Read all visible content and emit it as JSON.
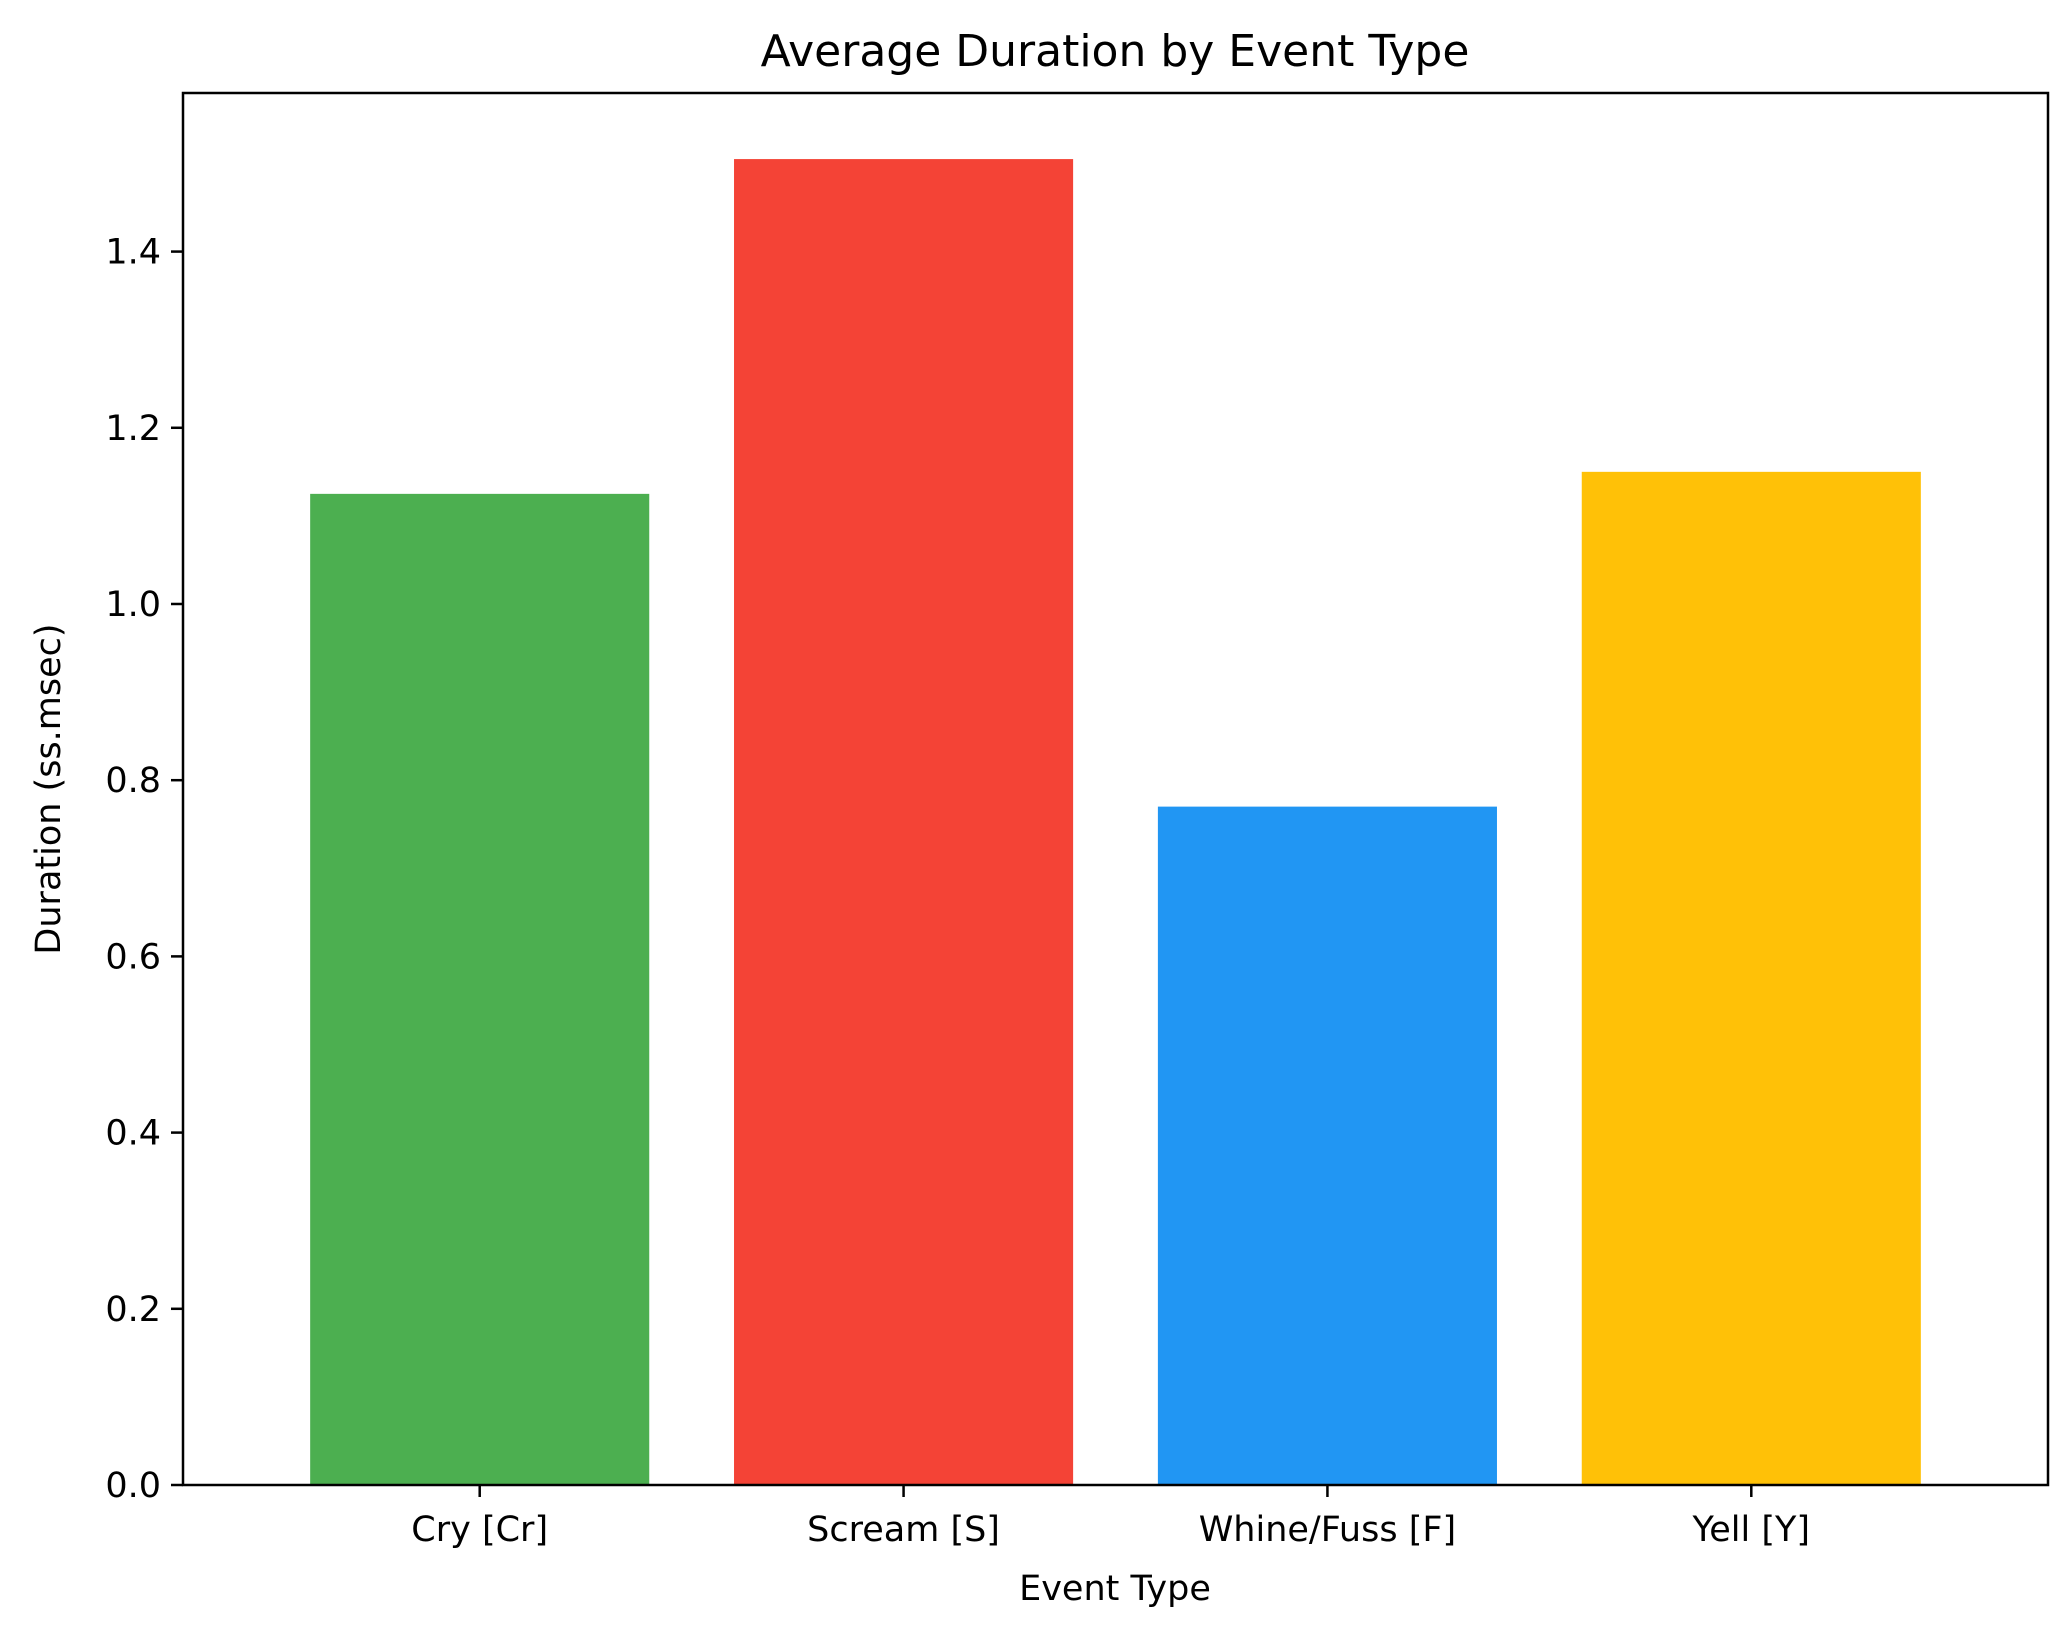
{
  "chart_data": {
    "type": "bar",
    "title": "Average Duration by Event Type",
    "xlabel": "Event Type",
    "ylabel": "Duration (ss.msec)",
    "categories": [
      "Cry [Cr]",
      "Scream [S]",
      "Whine/Fuss [F]",
      "Yell [Y]"
    ],
    "values": [
      1.125,
      1.505,
      0.77,
      1.15
    ],
    "colors": [
      "#4caf50",
      "#f44336",
      "#2196f3",
      "#ffc107"
    ],
    "yticks": [
      "0.0",
      "0.2",
      "0.4",
      "0.6",
      "0.8",
      "1.0",
      "1.2",
      "1.4"
    ],
    "ylim": [
      0,
      1.58
    ],
    "grid": false,
    "legend": "none"
  }
}
